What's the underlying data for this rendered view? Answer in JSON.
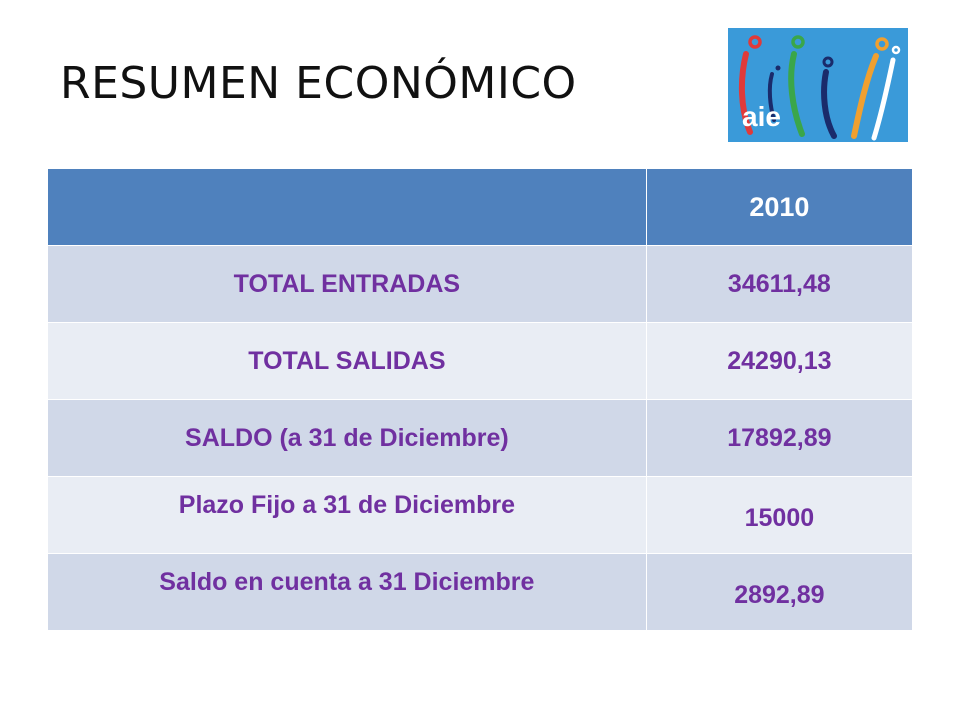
{
  "title": "RESUMEN ECONÓMICO",
  "logo": {
    "text": "aie",
    "background": "#3a9ad9"
  },
  "table": {
    "header": {
      "label": "",
      "year": "2010"
    },
    "rows": [
      {
        "label": "TOTAL ENTRADAS",
        "value": "34611,48"
      },
      {
        "label": "TOTAL SALIDAS",
        "value": "24290,13"
      },
      {
        "label": "SALDO (a 31 de Diciembre)",
        "value": "17892,89"
      },
      {
        "label": "Plazo Fijo a 31 de Diciembre",
        "value": "15000"
      },
      {
        "label": "Saldo en cuenta a 31 Diciembre",
        "value": "2892,89"
      }
    ]
  },
  "colors": {
    "header": "#4f81bd",
    "row_dark": "#d0d8e8",
    "row_light": "#e9edf4",
    "text": "#7030a0"
  }
}
